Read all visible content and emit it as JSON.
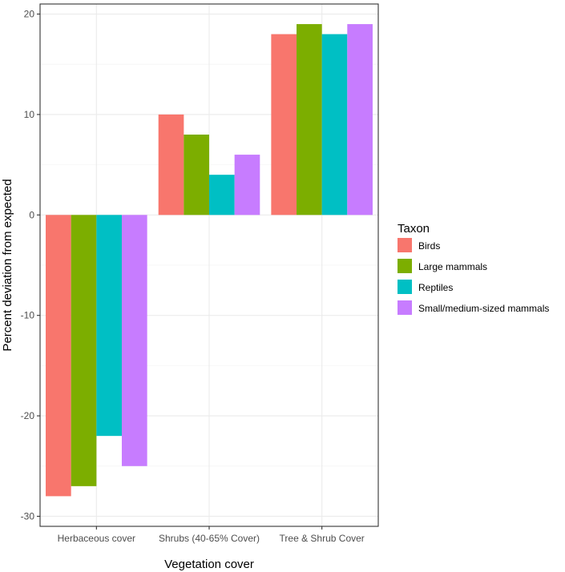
{
  "chart_data": {
    "type": "bar",
    "title": "",
    "xlabel": "Vegetation cover",
    "ylabel": "Percent deviation from expected",
    "categories": [
      "Herbaceous cover",
      "Shrubs (40-65% Cover)",
      "Tree & Shrub Cover"
    ],
    "series": [
      {
        "name": "Birds",
        "color": "#F8766D",
        "values": [
          -28,
          10,
          18
        ]
      },
      {
        "name": "Large mammals",
        "color": "#7CAE00",
        "values": [
          -27,
          8,
          19
        ]
      },
      {
        "name": "Reptiles",
        "color": "#00BFC4",
        "values": [
          -22,
          4,
          18
        ]
      },
      {
        "name": "Small/medium-sized mammals",
        "color": "#C77CFF",
        "values": [
          -25,
          6,
          19
        ]
      }
    ],
    "ylim": [
      -31,
      21
    ],
    "yticks": [
      -30,
      -20,
      -10,
      0,
      10,
      20
    ],
    "ytick_labels": [
      "-30",
      "-20",
      "-10",
      "0",
      "10",
      "20"
    ],
    "grid": true,
    "legend": {
      "title": "Taxon",
      "position": "right"
    }
  }
}
